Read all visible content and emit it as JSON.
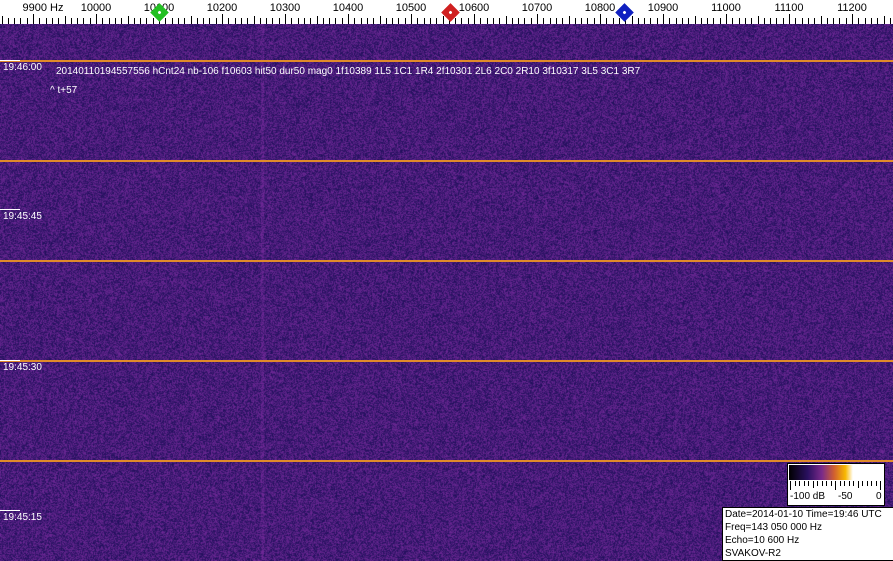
{
  "frequency_axis": {
    "unit": "Hz",
    "labels": [
      "9900 Hz",
      "10000",
      "10100",
      "10200",
      "10300",
      "10400",
      "10500",
      "10600",
      "10700",
      "10800",
      "10900",
      "11000",
      "11100",
      "11200"
    ],
    "values": [
      9900,
      10000,
      10100,
      10200,
      10300,
      10400,
      10500,
      10600,
      10700,
      10800,
      10900,
      11000,
      11100,
      11200
    ]
  },
  "markers": [
    {
      "name": "green-marker",
      "freq": 10100,
      "color": "#22c022"
    },
    {
      "name": "red-marker",
      "freq": 10562,
      "color": "#d02020"
    },
    {
      "name": "blue-marker",
      "freq": 10838,
      "color": "#1020c0"
    }
  ],
  "time_labels": [
    "19:46:00",
    "19:45:45",
    "19:45:30",
    "19:45:15"
  ],
  "detection": {
    "line": "20140110194557556 hCnt24 nb-106 f10603 hit50 dur50 mag0 1f10389 1L5 1C1 1R4 2f10301 2L6 2C0 2R10 3f10317 3L5 3C1 3R7",
    "offset": "^ t+57"
  },
  "colorbar": {
    "min_label": "-100 dB",
    "mid_label": "-50",
    "max_label": "0"
  },
  "info": {
    "date_time": "Date=2014-01-10 Time=19:46 UTC",
    "freq": "Freq=143 050 000 Hz",
    "echo": "Echo=10 600 Hz",
    "station": "SVAKOV-R2"
  },
  "colors": {
    "background": "#2a1a6a",
    "grid_line": "#e08a2a"
  }
}
